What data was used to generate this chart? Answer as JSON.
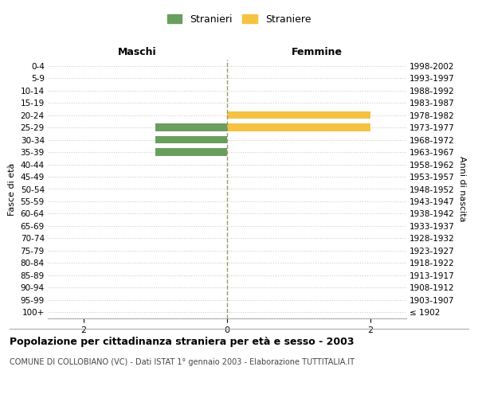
{
  "age_groups": [
    "100+",
    "95-99",
    "90-94",
    "85-89",
    "80-84",
    "75-79",
    "70-74",
    "65-69",
    "60-64",
    "55-59",
    "50-54",
    "45-49",
    "40-44",
    "35-39",
    "30-34",
    "25-29",
    "20-24",
    "15-19",
    "10-14",
    "5-9",
    "0-4"
  ],
  "birth_years": [
    "≤ 1902",
    "1903-1907",
    "1908-1912",
    "1913-1917",
    "1918-1922",
    "1923-1927",
    "1928-1932",
    "1933-1937",
    "1938-1942",
    "1943-1947",
    "1948-1952",
    "1953-1957",
    "1958-1962",
    "1963-1967",
    "1968-1972",
    "1973-1977",
    "1978-1982",
    "1983-1987",
    "1988-1992",
    "1993-1997",
    "1998-2002"
  ],
  "males": [
    0,
    0,
    0,
    0,
    0,
    0,
    0,
    0,
    0,
    0,
    0,
    0,
    0,
    1,
    1,
    1,
    0,
    0,
    0,
    0,
    0
  ],
  "females": [
    0,
    0,
    0,
    0,
    0,
    0,
    0,
    0,
    0,
    0,
    0,
    0,
    0,
    0,
    0,
    2,
    2,
    0,
    0,
    0,
    0
  ],
  "male_color": "#6a9e5e",
  "female_color": "#f5c242",
  "xlim": 2.5,
  "title": "Popolazione per cittadinanza straniera per età e sesso - 2003",
  "subtitle": "COMUNE DI COLLOBIANO (VC) - Dati ISTAT 1° gennaio 2003 - Elaborazione TUTTITALIA.IT",
  "legend_male": "Stranieri",
  "legend_female": "Straniere",
  "label_left": "Maschi",
  "label_right": "Femmine",
  "ylabel_left": "Fasce di età",
  "ylabel_right": "Anni di nascita",
  "background_color": "#ffffff",
  "grid_color": "#cccccc"
}
